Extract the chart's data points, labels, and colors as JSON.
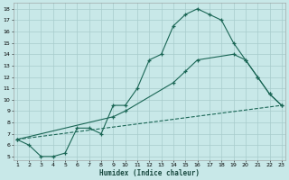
{
  "xlabel": "Humidex (Indice chaleur)",
  "bg_color": "#c8e8e8",
  "grid_color": "#a8cccc",
  "line_color": "#1a6655",
  "xlim": [
    1,
    23
  ],
  "ylim": [
    5,
    18
  ],
  "xticks": [
    1,
    2,
    3,
    4,
    5,
    6,
    7,
    8,
    9,
    10,
    11,
    12,
    13,
    14,
    15,
    16,
    17,
    18,
    19,
    20,
    21,
    22,
    23
  ],
  "yticks": [
    5,
    6,
    7,
    8,
    9,
    10,
    11,
    12,
    13,
    14,
    15,
    16,
    17,
    18
  ],
  "line1_x": [
    1,
    2,
    3,
    4,
    5,
    6,
    7,
    8,
    9,
    10,
    11,
    12,
    13,
    14,
    15,
    16,
    17,
    18,
    19,
    20,
    21,
    22,
    23
  ],
  "line1_y": [
    6.5,
    6.0,
    5.0,
    5.0,
    5.3,
    7.5,
    7.5,
    7.0,
    9.5,
    9.5,
    11.0,
    13.5,
    14.0,
    16.5,
    17.5,
    18.0,
    17.5,
    17.0,
    15.0,
    13.5,
    12.0,
    10.5,
    9.5
  ],
  "line2_x": [
    1,
    9,
    10,
    14,
    15,
    16,
    19,
    20,
    21,
    22,
    23
  ],
  "line2_y": [
    6.5,
    8.5,
    9.0,
    11.5,
    12.5,
    13.5,
    14.0,
    13.5,
    12.0,
    10.5,
    9.5
  ],
  "line3_x": [
    1,
    23
  ],
  "line3_y": [
    6.5,
    9.5
  ]
}
